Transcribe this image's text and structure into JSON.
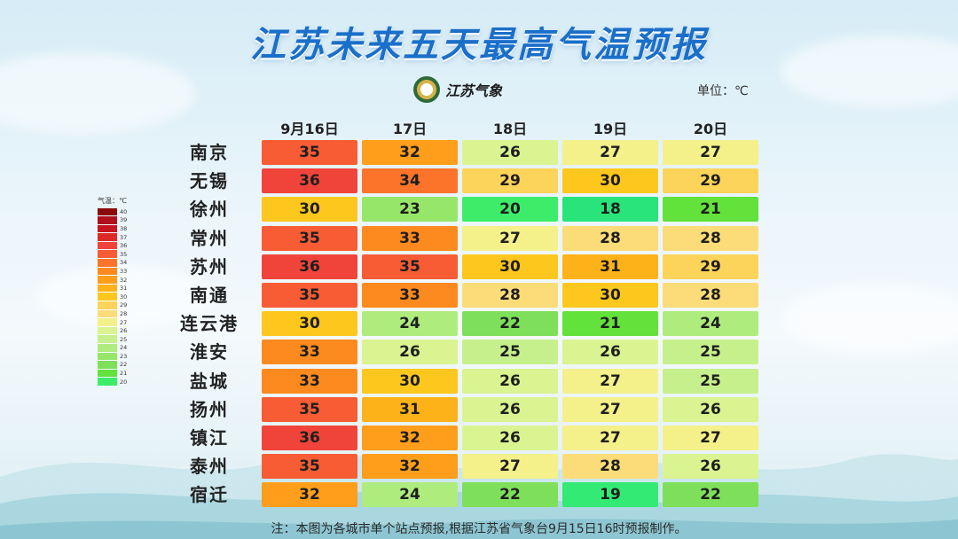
{
  "header": {
    "title": "江苏未来五天最高气温预报",
    "logo_text": "江苏气象",
    "unit": "单位：℃"
  },
  "chart_data": {
    "type": "heatmap",
    "title": "江苏未来五天最高气温预报",
    "unit": "℃",
    "columns": [
      "9月16日",
      "17日",
      "18日",
      "19日",
      "20日"
    ],
    "rows": [
      "南京",
      "无锡",
      "徐州",
      "常州",
      "苏州",
      "南通",
      "连云港",
      "淮安",
      "盐城",
      "扬州",
      "镇江",
      "泰州",
      "宿迁"
    ],
    "values": [
      [
        35,
        32,
        26,
        27,
        27
      ],
      [
        36,
        34,
        29,
        30,
        29
      ],
      [
        30,
        23,
        20,
        18,
        21
      ],
      [
        35,
        33,
        27,
        28,
        28
      ],
      [
        36,
        35,
        30,
        31,
        29
      ],
      [
        35,
        33,
        28,
        30,
        28
      ],
      [
        30,
        24,
        22,
        21,
        24
      ],
      [
        33,
        26,
        25,
        26,
        25
      ],
      [
        33,
        30,
        26,
        27,
        25
      ],
      [
        35,
        31,
        26,
        27,
        26
      ],
      [
        36,
        32,
        26,
        27,
        27
      ],
      [
        35,
        32,
        27,
        28,
        26
      ],
      [
        32,
        24,
        22,
        19,
        22
      ]
    ],
    "legend": {
      "title": "气温：℃",
      "levels": [
        40,
        39,
        38,
        37,
        36,
        35,
        34,
        33,
        32,
        31,
        30,
        29,
        28,
        27,
        26,
        25,
        24,
        23,
        22,
        21,
        20
      ],
      "colors": {
        "40": "#8b0a0a",
        "39": "#b0101c",
        "38": "#c8141e",
        "37": "#de2a26",
        "36": "#f0443a",
        "35": "#f75c34",
        "34": "#fb742a",
        "33": "#fd8a1f",
        "32": "#fe9e1a",
        "31": "#fdb219",
        "30": "#fdc71e",
        "29": "#fdd45a",
        "28": "#fbdc78",
        "27": "#f4f08a",
        "26": "#d9f490",
        "25": "#c6f08c",
        "24": "#aeec7e",
        "23": "#96e66a",
        "22": "#7ee05a",
        "21": "#62e23a",
        "20": "#3ded6a",
        "19": "#32ea74",
        "18": "#28e47a"
      }
    }
  },
  "footnote": "注：本图为各城市单个站点预报,根据江苏省气象台9月15日16时预报制作。"
}
